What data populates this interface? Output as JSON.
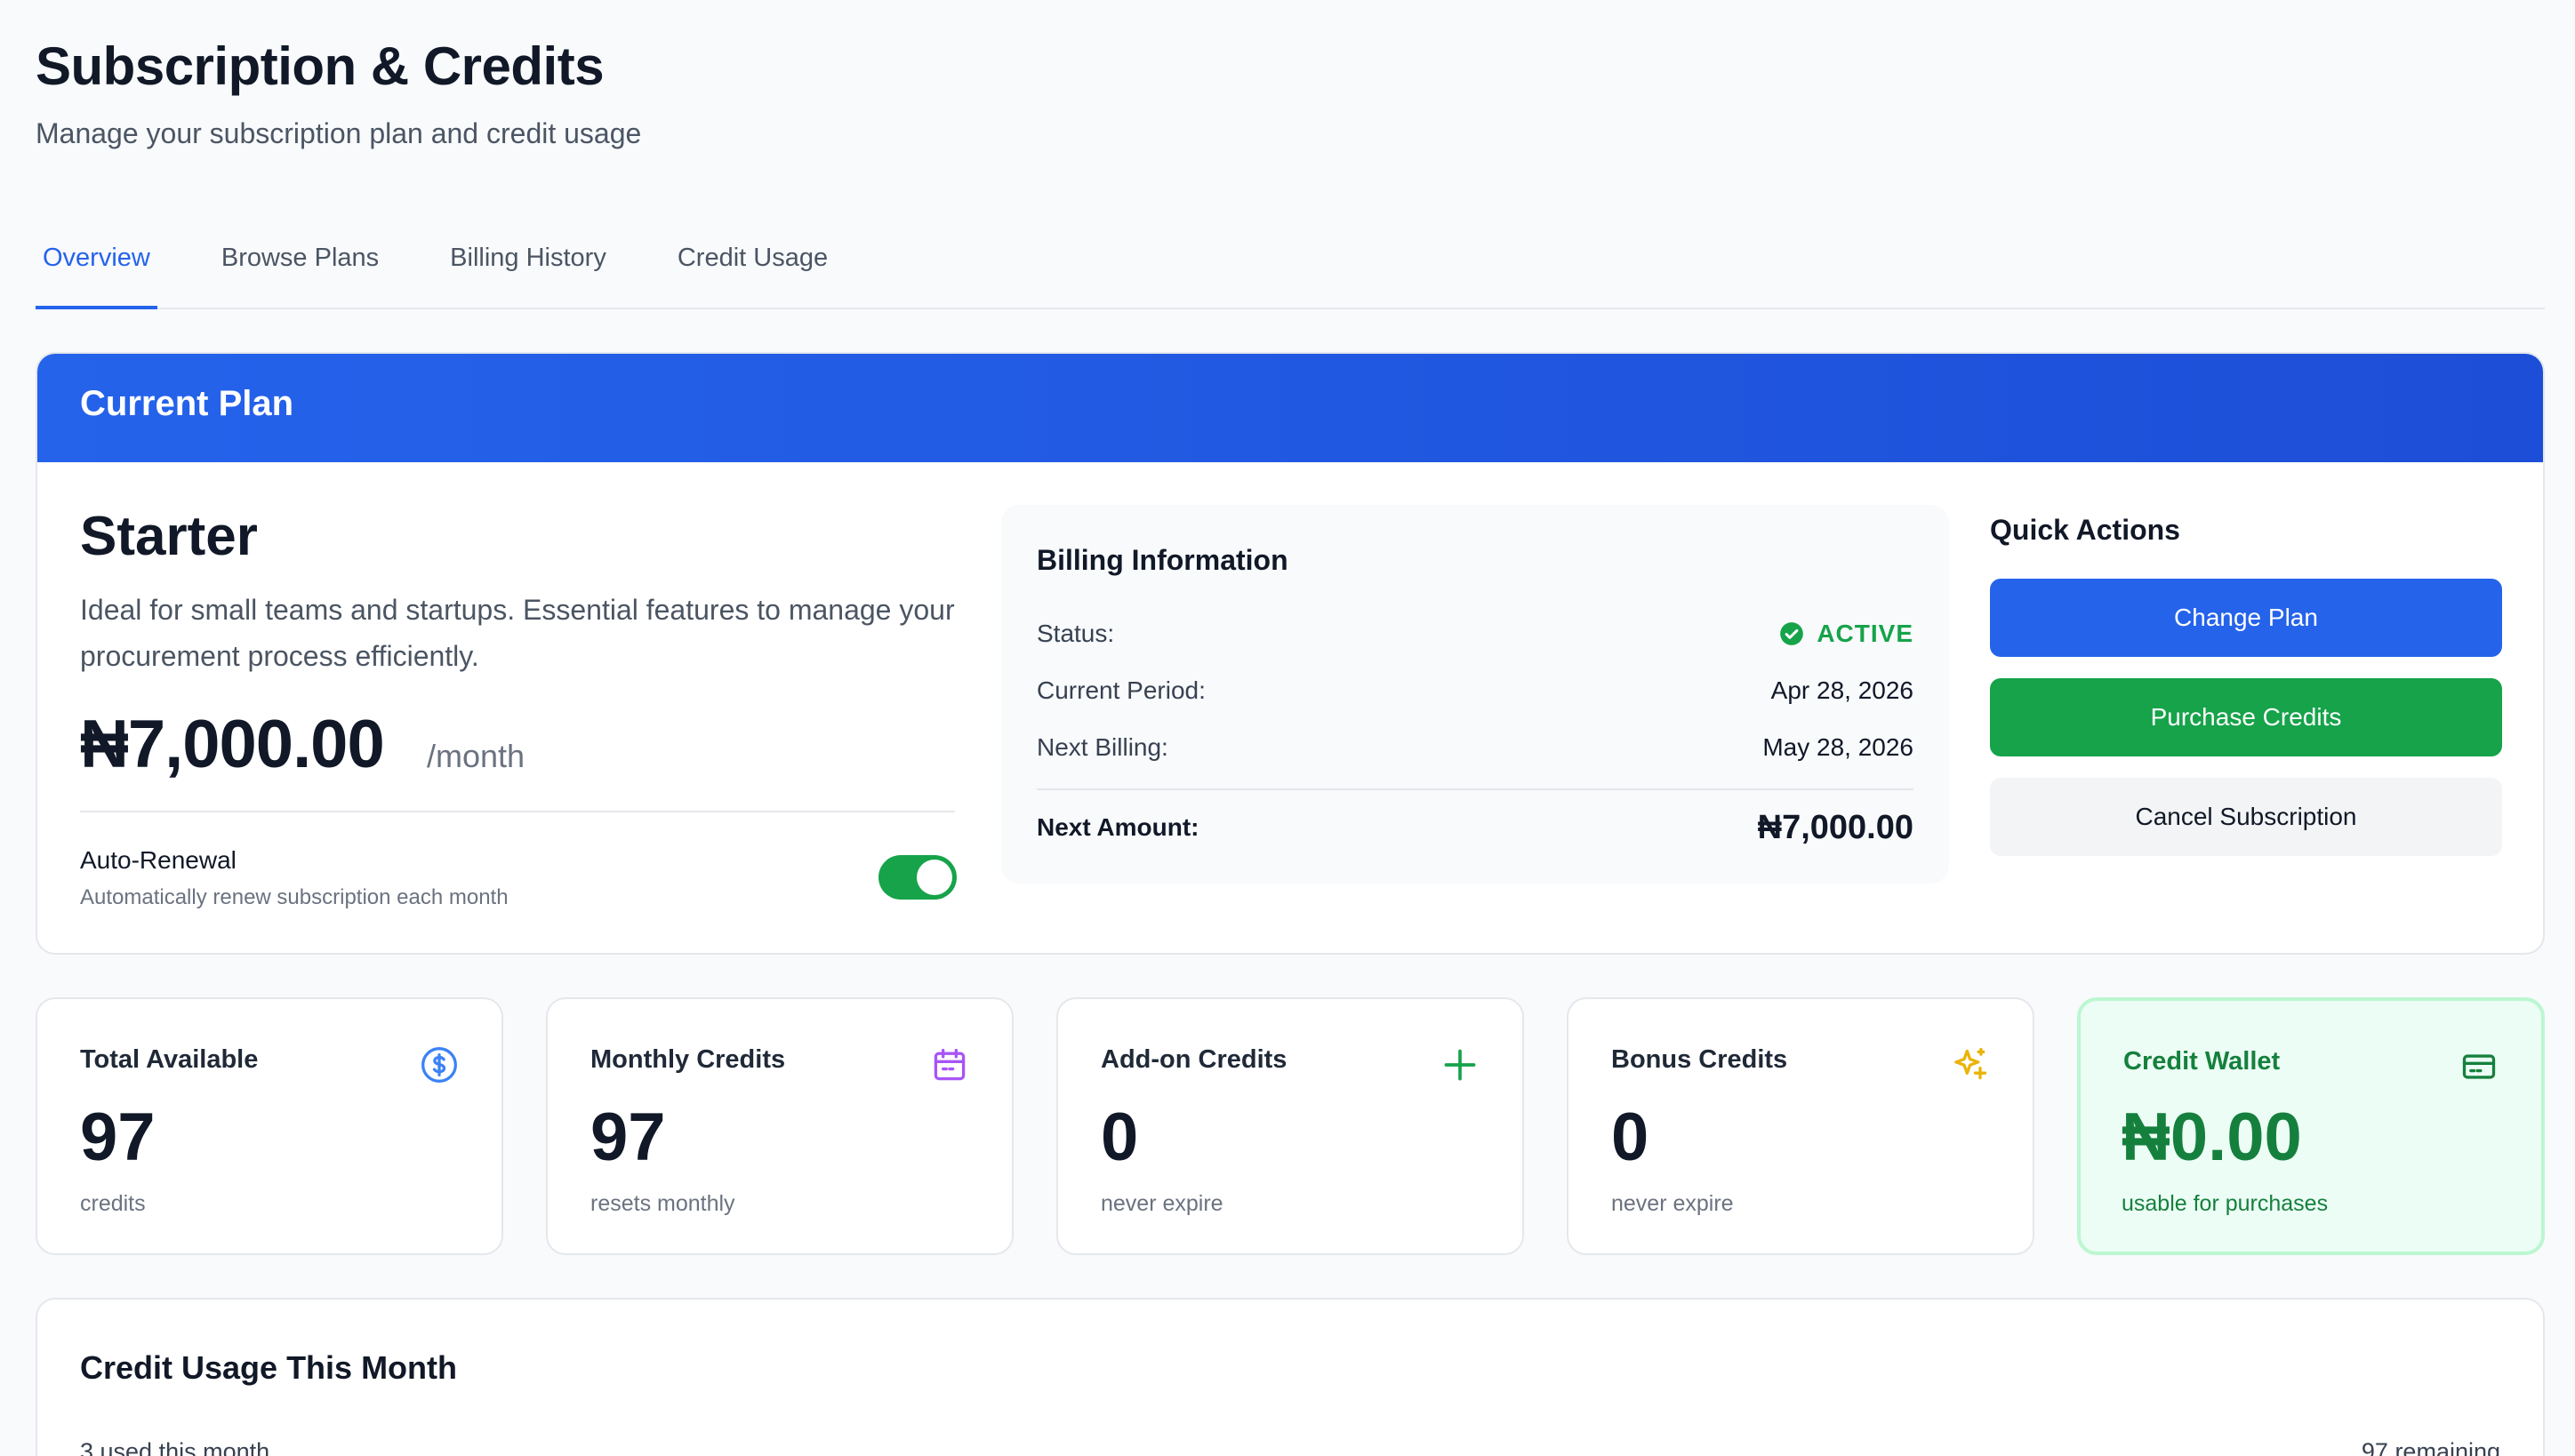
{
  "header": {
    "title": "Subscription & Credits",
    "subtitle": "Manage your subscription plan and credit usage"
  },
  "tabs": [
    {
      "label": "Overview",
      "active": true
    },
    {
      "label": "Browse Plans",
      "active": false
    },
    {
      "label": "Billing History",
      "active": false
    },
    {
      "label": "Credit Usage",
      "active": false
    }
  ],
  "current_plan": {
    "header": "Current Plan",
    "name": "Starter",
    "description": "Ideal for small teams and startups. Essential features to manage your procurement process efficiently.",
    "price": "₦7,000.00",
    "period": "/month",
    "auto_renewal": {
      "label": "Auto-Renewal",
      "description": "Automatically renew subscription each month",
      "enabled": true
    }
  },
  "billing": {
    "title": "Billing Information",
    "status_label": "Status:",
    "status_value": "ACTIVE",
    "current_period_label": "Current Period:",
    "current_period_value": "Apr 28, 2026",
    "next_billing_label": "Next Billing:",
    "next_billing_value": "May 28, 2026",
    "next_amount_label": "Next Amount:",
    "next_amount_value": "₦7,000.00"
  },
  "quick_actions": {
    "title": "Quick Actions",
    "change_plan": "Change Plan",
    "purchase_credits": "Purchase Credits",
    "cancel_subscription": "Cancel Subscription"
  },
  "stats": [
    {
      "label": "Total Available",
      "value": "97",
      "sub": "credits",
      "icon": "dollar-circle-icon",
      "color": "#3b82f6"
    },
    {
      "label": "Monthly Credits",
      "value": "97",
      "sub": "resets monthly",
      "icon": "calendar-icon",
      "color": "#a855f7"
    },
    {
      "label": "Add-on Credits",
      "value": "0",
      "sub": "never expire",
      "icon": "plus-icon",
      "color": "#16a34a"
    },
    {
      "label": "Bonus Credits",
      "value": "0",
      "sub": "never expire",
      "icon": "sparkles-icon",
      "color": "#eab308"
    },
    {
      "label": "Credit Wallet",
      "value": "₦0.00",
      "sub": "usable for purchases",
      "icon": "credit-card-icon",
      "color": "#15803d"
    }
  ],
  "usage": {
    "title": "Credit Usage This Month",
    "used": "3 used this month",
    "remaining": "97 remaining"
  },
  "colors": {
    "primary": "#2563eb",
    "success": "#16a34a",
    "muted": "#f3f4f6",
    "background": "#f8fafc"
  }
}
